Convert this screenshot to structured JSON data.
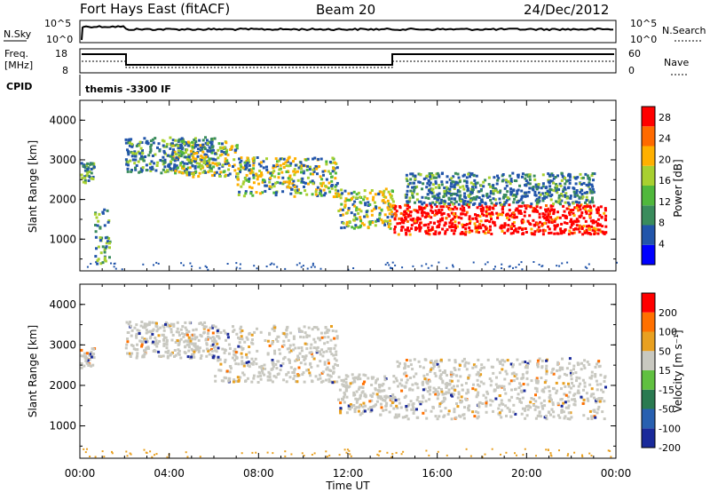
{
  "header": {
    "title": "Fort Hays East (fitACF)",
    "beam": "Beam 20",
    "date": "24/Dec/2012"
  },
  "top_panels": {
    "nsky_label": "N.Sky",
    "nsky_ticks": [
      "10^5",
      "10^0"
    ],
    "nsearch_label": "N.Search",
    "nsearch_ticks": [
      "10^5",
      "10^0"
    ],
    "freq_label_1": "Freq.",
    "freq_label_2": "[MHz]",
    "freq_ticks": [
      "18",
      "8"
    ],
    "nave_label": "Nave",
    "nave_ticks": [
      "60",
      "0"
    ],
    "cpid_label": "CPID",
    "cpid_value": "themis -3300 IF"
  },
  "chart_data": [
    {
      "type": "heatmap",
      "name": "Power",
      "xlabel": "Time UT",
      "ylabel": "Slant Range [km]",
      "xlim": [
        0,
        24
      ],
      "ylim": [
        200,
        4500
      ],
      "yticks": [
        "1000",
        "2000",
        "3000",
        "4000"
      ],
      "xticks": [
        "00:00",
        "04:00",
        "08:00",
        "12:00",
        "16:00",
        "20:00",
        "00:00"
      ],
      "colorbar": {
        "label": "Power [dB]",
        "ticks": [
          "4",
          "8",
          "12",
          "16",
          "20",
          "24",
          "28"
        ],
        "range": [
          0,
          30
        ],
        "colors": [
          "#0000ff",
          "#2255aa",
          "#3a8c5c",
          "#50b83c",
          "#a8d030",
          "#ffb000",
          "#ff6a00",
          "#ff0000"
        ]
      },
      "echo_bands": [
        {
          "t": [
            0.0,
            0.6
          ],
          "range": [
            2450,
            2950
          ],
          "level": "mid"
        },
        {
          "t": [
            0.6,
            1.3
          ],
          "range": [
            400,
            1800
          ],
          "level": "mid"
        },
        {
          "t": [
            2.0,
            6.0
          ],
          "range": [
            2700,
            3600
          ],
          "level": "low"
        },
        {
          "t": [
            4.0,
            7.0
          ],
          "range": [
            2600,
            3500
          ],
          "level": "high"
        },
        {
          "t": [
            7.0,
            11.5
          ],
          "range": [
            2100,
            3100
          ],
          "level": "high"
        },
        {
          "t": [
            11.5,
            14.0
          ],
          "range": [
            1300,
            2300
          ],
          "level": "high"
        },
        {
          "t": [
            14.0,
            23.5
          ],
          "range": [
            1150,
            1900
          ],
          "level": "max"
        },
        {
          "t": [
            14.5,
            23.0
          ],
          "range": [
            1900,
            2700
          ],
          "level": "low"
        }
      ]
    },
    {
      "type": "heatmap",
      "name": "Velocity",
      "xlabel": "Time UT",
      "ylabel": "Slant Range [km]",
      "xlim": [
        0,
        24
      ],
      "ylim": [
        200,
        4500
      ],
      "yticks": [
        "1000",
        "2000",
        "3000",
        "4000"
      ],
      "xticks": [
        "00:00",
        "04:00",
        "08:00",
        "12:00",
        "16:00",
        "20:00",
        "00:00"
      ],
      "colorbar": {
        "label": "Velocity [m s⁻¹]",
        "ticks": [
          "200",
          "100",
          "50",
          "15",
          "-15",
          "-50",
          "-100",
          "-200"
        ],
        "colors": [
          "#1a2a9a",
          "#2860b0",
          "#2a7a50",
          "#60c040",
          "#c8c8c0",
          "#e8a020",
          "#ff7000",
          "#ff0000"
        ]
      },
      "echo_bands": [
        {
          "t": [
            0.0,
            0.6
          ],
          "range": [
            2450,
            2950
          ],
          "level": "gs"
        },
        {
          "t": [
            2.0,
            6.0
          ],
          "range": [
            2700,
            3600
          ],
          "level": "gs"
        },
        {
          "t": [
            6.0,
            11.5
          ],
          "range": [
            2100,
            3500
          ],
          "level": "gs"
        },
        {
          "t": [
            11.5,
            14.0
          ],
          "range": [
            1300,
            2300
          ],
          "level": "gs"
        },
        {
          "t": [
            14.0,
            23.5
          ],
          "range": [
            1200,
            2700
          ],
          "level": "gs"
        }
      ]
    }
  ]
}
